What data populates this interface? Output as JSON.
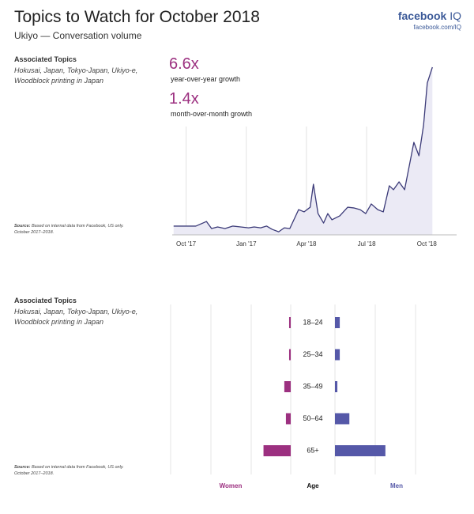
{
  "header": {
    "title": "Topics to Watch for October 2018",
    "subtitle": "Ukiyo — Conversation volume",
    "brand": "facebook",
    "brand_suffix": "IQ",
    "url": "facebook.com/IQ"
  },
  "chart_data": [
    {
      "type": "line",
      "side": {
        "heading": "Associated Topics",
        "topics": "Hokusai, Japan, Tokyo-Japan, Ukiyo-e, Woodblock printing in Japan",
        "source_label": "Source:",
        "source": "Based on internal data from Facebook, US only. October 2017–2018."
      },
      "stats": [
        {
          "value": "6.6x",
          "label": "year-over-year growth"
        },
        {
          "value": "1.4x",
          "label": "month-over-month growth"
        }
      ],
      "x": [
        -2.7,
        0,
        2.1,
        4.4,
        5.5,
        6.8,
        8.4,
        10.1,
        11.8,
        13.5,
        14.7,
        16.1,
        17.4,
        18.6,
        20,
        21.2,
        22.4,
        24.3,
        25.5,
        26.8,
        27.5,
        28.5,
        29.7,
        30.6,
        31.5,
        33.2,
        34.9,
        36.2,
        37.6,
        38.8,
        40,
        41.4,
        42.6,
        43.9,
        44.8,
        46,
        47.2,
        48.2,
        49.2,
        50.3,
        51.3,
        52.1,
        53.2
      ],
      "series": [
        {
          "color": "#3b3a78",
          "values": [
            5.1,
            5.1,
            5.1,
            7.8,
            3.7,
            4.6,
            3.7,
            5.1,
            4.6,
            4.1,
            4.6,
            4.1,
            5.1,
            3.2,
            1.8,
            4.1,
            3.7,
            14.7,
            13.4,
            16.1,
            29.5,
            12.4,
            6.9,
            12.4,
            8.8,
            11.1,
            16.1,
            15.7,
            14.7,
            12.4,
            18,
            14.7,
            13.4,
            28.6,
            26.3,
            30.9,
            26.3,
            40.1,
            53.9,
            46.1,
            64,
            88.5,
            97.7
          ]
        }
      ],
      "area_color": "#ebeaf5",
      "xlim": [
        -3,
        54
      ],
      "xticks": [
        {
          "value": 0,
          "label": "Oct '17"
        },
        {
          "value": 13,
          "label": "Jan '17"
        },
        {
          "value": 26,
          "label": "Apr '18"
        },
        {
          "value": 39,
          "label": "Jul '18"
        },
        {
          "value": 52,
          "label": "Oct '18"
        }
      ],
      "ylim": [
        0,
        100
      ],
      "grid": true
    },
    {
      "type": "butterfly",
      "side": {
        "heading": "Associated Topics",
        "topics": "Hokusai, Japan, Tokyo-Japan, Ukiyo-e, Woodblock printing in Japan",
        "source_label": "Source:",
        "source": "Based on internal data from Facebook, US only. October 2017–2018."
      },
      "categories": [
        "18–24",
        "25–34",
        "35–49",
        "50–64",
        "65+"
      ],
      "category_label": "Age",
      "series": [
        {
          "name": "Women",
          "color": "#9c3080",
          "values": [
            0.4,
            0.4,
            1.6,
            1.2,
            6.8
          ]
        },
        {
          "name": "Men",
          "color": "#5558a8",
          "values": [
            1.2,
            1.2,
            0.6,
            3.6,
            12.6
          ]
        }
      ],
      "xlim": [
        0,
        30
      ]
    }
  ]
}
